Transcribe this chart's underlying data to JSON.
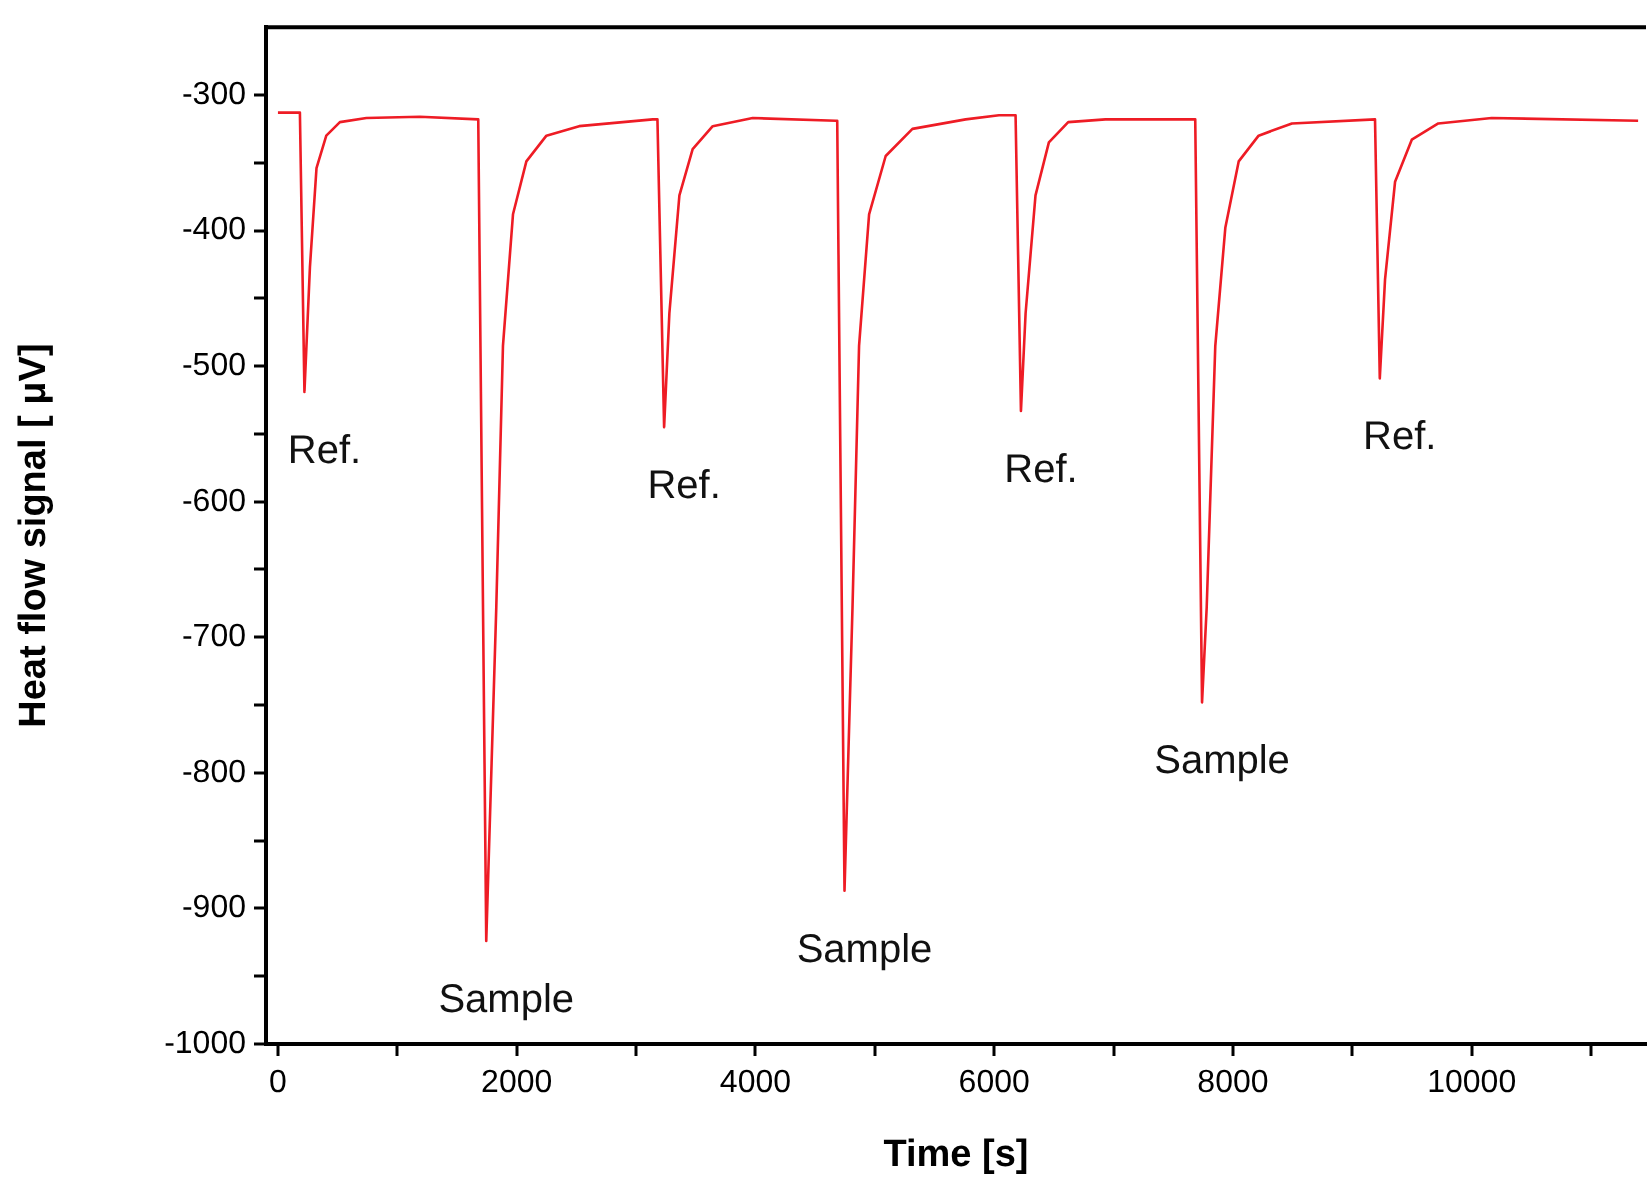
{
  "chart_data": {
    "type": "line",
    "xlabel": "Time [s]",
    "ylabel": "Heat flow signal [ μV]",
    "series": [
      {
        "color": "#ee1c25",
        "x": [
          0,
          184,
          222,
          229,
          268,
          323,
          405,
          519,
          741,
          1188,
          1678,
          1690,
          1745,
          1829,
          1885,
          1969,
          2081,
          2249,
          2523,
          3140,
          3179,
          3235,
          3279,
          3363,
          3474,
          3642,
          3977,
          4673,
          4685,
          4746,
          4813,
          4868,
          4952,
          5091,
          5315,
          5761,
          6040,
          6179,
          6224,
          6263,
          6346,
          6458,
          6620,
          6932,
          7684,
          7741,
          7780,
          7852,
          7936,
          8048,
          8215,
          8494,
          9190,
          9230,
          9274,
          9358,
          9498,
          9720,
          10167,
          11394
        ],
        "values": [
          -313,
          -313,
          -519,
          -519,
          -427,
          -354,
          -330,
          -320,
          -317,
          -316,
          -318,
          -318,
          -924,
          -678,
          -485,
          -388,
          -349,
          -330,
          -323,
          -318,
          -318,
          -545,
          -461,
          -374,
          -340,
          -323,
          -317,
          -319,
          -319,
          -887,
          -678,
          -485,
          -388,
          -345,
          -325,
          -318,
          -315,
          -315,
          -533,
          -461,
          -374,
          -335,
          -320,
          -318,
          -318,
          -748,
          -678,
          -485,
          -398,
          -349,
          -330,
          -321,
          -318,
          -509,
          -436,
          -364,
          -333,
          -321,
          -317,
          -319
        ]
      }
    ],
    "xlim": [
      -100,
      11460
    ],
    "ylim": [
      -1000,
      -250
    ],
    "xticks": [
      0,
      {
        "value": 1000,
        "label": null
      },
      2000,
      {
        "value": 3000,
        "label": null
      },
      4000,
      {
        "value": 5000,
        "label": null
      },
      6000,
      {
        "value": 7000,
        "label": null
      },
      8000,
      {
        "value": 9000,
        "label": null
      },
      10000,
      {
        "value": 11000,
        "label": null
      }
    ],
    "yticks": [
      -1000,
      {
        "value": -950,
        "label": null
      },
      -900,
      {
        "value": -850,
        "label": null
      },
      -800,
      {
        "value": -750,
        "label": null
      },
      -700,
      {
        "value": -650,
        "label": null
      },
      -600,
      {
        "value": -550,
        "label": null
      },
      -500,
      {
        "value": -450,
        "label": null
      },
      -400,
      {
        "value": -350,
        "label": null
      },
      -300
    ],
    "grid": false,
    "legend": false,
    "marker": "none",
    "line_style": "solid",
    "annotations": [
      {
        "text": "Ref.",
        "x": 222,
        "y": -519
      },
      {
        "text": "Sample",
        "x": 1745,
        "y": -924
      },
      {
        "text": "Ref.",
        "x": 3235,
        "y": -545
      },
      {
        "text": "Sample",
        "x": 4746,
        "y": -887
      },
      {
        "text": "Ref.",
        "x": 6224,
        "y": -533
      },
      {
        "text": "Sample",
        "x": 7741,
        "y": -748
      },
      {
        "text": "Ref.",
        "x": 9230,
        "y": -509
      }
    ]
  }
}
